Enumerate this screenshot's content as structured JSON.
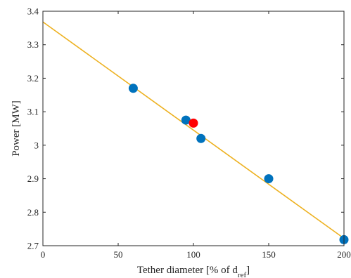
{
  "chart_data": {
    "type": "scatter",
    "xlabel": {
      "main": "Tether diameter [% of d",
      "sub": "ref",
      "close": "]"
    },
    "ylabel": "Power [MW]",
    "xlim": [
      0,
      200
    ],
    "ylim": [
      2.7,
      3.4
    ],
    "xticks": [
      0,
      50,
      100,
      150,
      200
    ],
    "xtick_labels": [
      "0",
      "50",
      "100",
      "150",
      "200"
    ],
    "yticks": [
      2.7,
      2.8,
      2.9,
      3.0,
      3.1,
      3.2,
      3.3,
      3.4
    ],
    "ytick_labels": [
      "2.7",
      "2.8",
      "2.9",
      "3",
      "3.1",
      "3.2",
      "3.3",
      "3.4"
    ],
    "grid": false,
    "series": [
      {
        "kind": "scatter",
        "color": "#0072BD",
        "points": [
          {
            "x": 60,
            "y": 3.17
          },
          {
            "x": 95,
            "y": 3.075
          },
          {
            "x": 105,
            "y": 3.02
          },
          {
            "x": 150,
            "y": 2.9
          },
          {
            "x": 200,
            "y": 2.718
          }
        ]
      },
      {
        "kind": "scatter",
        "color": "#FF0000",
        "points": [
          {
            "x": 100,
            "y": 3.066
          }
        ]
      },
      {
        "kind": "line",
        "color": "#EDB120",
        "points": [
          {
            "x": 0,
            "y": 3.368
          },
          {
            "x": 200,
            "y": 2.722
          }
        ]
      }
    ]
  }
}
